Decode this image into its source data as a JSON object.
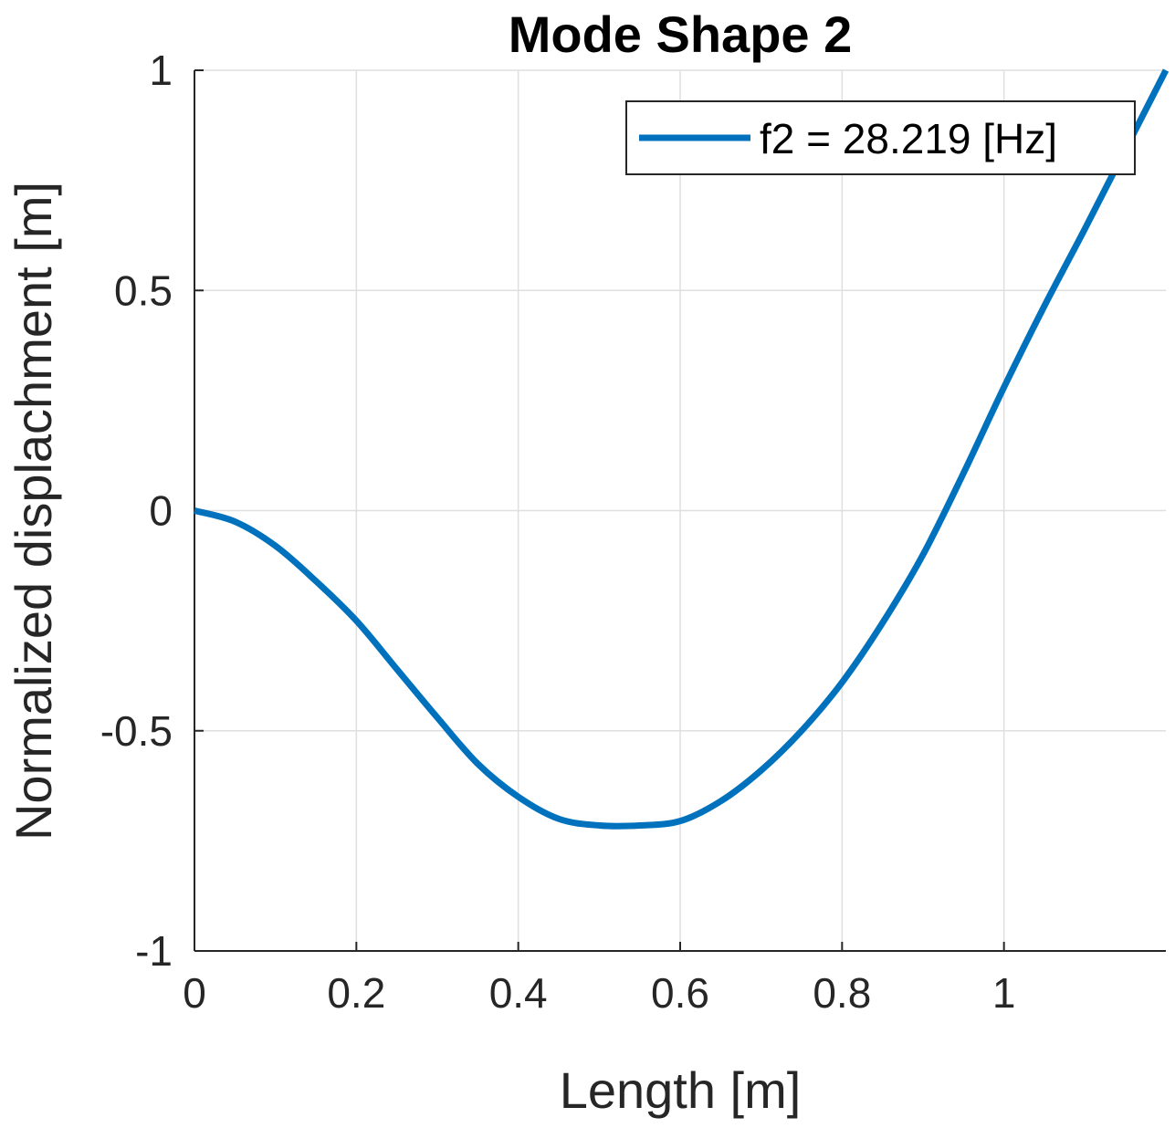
{
  "chart_data": {
    "type": "line",
    "title": "Mode Shape 2",
    "xlabel": "Length [m]",
    "ylabel": "Normalized displachment [m]",
    "xlim": [
      0,
      1.2
    ],
    "ylim": [
      -1,
      1
    ],
    "xticks": [
      0,
      0.2,
      0.4,
      0.6,
      0.8,
      1
    ],
    "xtick_labels": [
      "0",
      "0.2",
      "0.4",
      "0.6",
      "0.8",
      "1"
    ],
    "yticks": [
      -1,
      -0.5,
      0,
      0.5,
      1
    ],
    "ytick_labels": [
      "-1",
      "-0.5",
      "0",
      "0.5",
      "1"
    ],
    "grid": true,
    "legend_position": "top-right",
    "series": [
      {
        "name": "f2 = 28.219 [Hz]",
        "color": "#0072BD",
        "x": [
          0,
          0.05,
          0.1,
          0.15,
          0.2,
          0.25,
          0.3,
          0.35,
          0.4,
          0.45,
          0.5,
          0.55,
          0.6,
          0.65,
          0.7,
          0.75,
          0.8,
          0.85,
          0.9,
          0.95,
          1.0,
          1.05,
          1.1,
          1.15,
          1.2
        ],
        "y": [
          0,
          -0.025,
          -0.08,
          -0.16,
          -0.25,
          -0.36,
          -0.47,
          -0.575,
          -0.65,
          -0.7,
          -0.715,
          -0.715,
          -0.705,
          -0.66,
          -0.59,
          -0.5,
          -0.39,
          -0.255,
          -0.1,
          0.085,
          0.28,
          0.465,
          0.64,
          0.82,
          1.0
        ]
      }
    ]
  }
}
